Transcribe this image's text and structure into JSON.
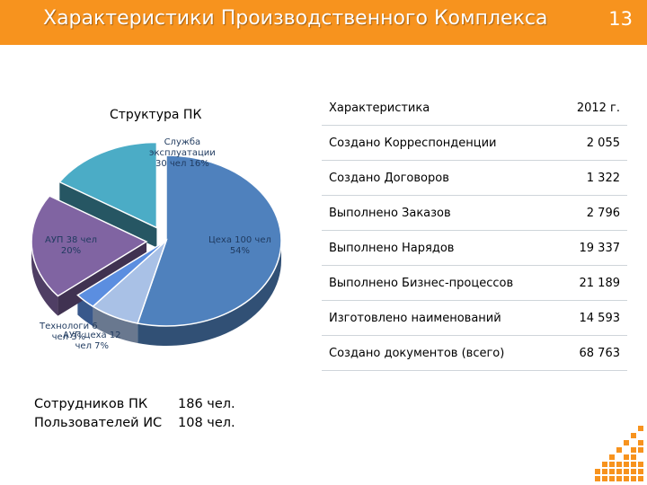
{
  "header": {
    "title": "Характеристики Производственного Комплекса",
    "slide_number": "13",
    "color": "#f7931e"
  },
  "chart_data": {
    "type": "pie",
    "title": "Структура ПК",
    "slices": [
      {
        "label_lines": [
          "Цеха 100 чел",
          "54%"
        ],
        "percent": 54,
        "people": 100,
        "color": "#4f81bd"
      },
      {
        "label_lines": [
          "АУП цеха 12",
          "чел 7%"
        ],
        "percent": 7,
        "people": 12,
        "color": "#a9c1e6"
      },
      {
        "label_lines": [
          "Технологи 6",
          "чел 3%"
        ],
        "percent": 3,
        "people": 6,
        "color": "#5b8ee0"
      },
      {
        "label_lines": [
          "АУП 38 чел",
          "20%"
        ],
        "percent": 20,
        "people": 38,
        "color": "#8064a2"
      },
      {
        "label_lines": [
          "Служба",
          "эксплуатации",
          "30 чел 16%"
        ],
        "percent": 16,
        "people": 30,
        "color": "#4bacc6"
      }
    ]
  },
  "staff": [
    {
      "name": "Сотрудников ПК",
      "value": "186 чел."
    },
    {
      "name": "Пользователей ИС",
      "value": "108 чел."
    }
  ],
  "table": {
    "header": {
      "label": "Характеристика",
      "year": "2012 г."
    },
    "rows": [
      {
        "label": "Создано Корреспонденции",
        "value": "2 055"
      },
      {
        "label": "Создано Договоров",
        "value": "1 322"
      },
      {
        "label": "Выполнено Заказов",
        "value": "2 796"
      },
      {
        "label": "Выполнено Нарядов",
        "value": "19 337"
      },
      {
        "label": "Выполнено Бизнес-процессов",
        "value": "21 189"
      },
      {
        "label": "Изготовлено наименований",
        "value": "14 593"
      },
      {
        "label": "Создано документов (всего)",
        "value": "68 763"
      }
    ]
  },
  "decoration": {
    "color": "#f7931e"
  }
}
